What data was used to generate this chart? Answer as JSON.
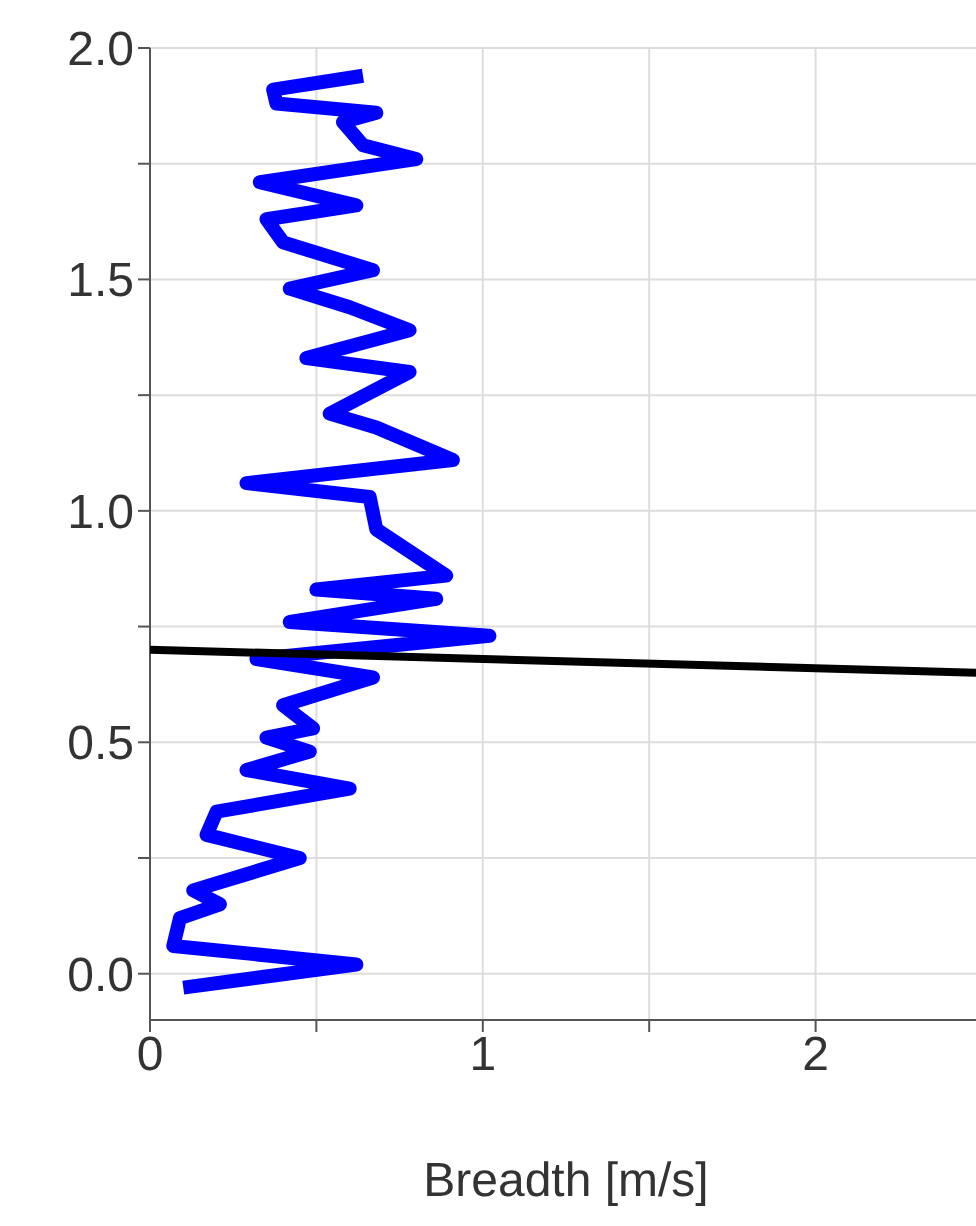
{
  "chart_data": {
    "type": "line",
    "xlabel": "Breadth [m/s]",
    "xlim": [
      0,
      2.5
    ],
    "ylim": [
      -0.1,
      2.0
    ],
    "xticks": [
      0,
      {
        "value": 0.5,
        "label": null
      },
      1,
      {
        "value": 1.5,
        "label": null
      },
      2
    ],
    "yticks": [
      {
        "value": 0,
        "label": "0.0"
      },
      {
        "value": 0.25,
        "label": null
      },
      {
        "value": 0.5,
        "label": "0.5"
      },
      {
        "value": 0.75,
        "label": null
      },
      {
        "value": 1,
        "label": "1.0"
      },
      {
        "value": 1.25,
        "label": null
      },
      {
        "value": 1.5,
        "label": "1.5"
      },
      {
        "value": 1.75,
        "label": null
      },
      {
        "value": 2,
        "label": "2.0"
      }
    ],
    "grid": true,
    "marker": "none",
    "line_style": "solid",
    "series": [
      {
        "color": "#0000ff",
        "x": [
          0.64,
          0.37,
          0.38,
          0.68,
          0.58,
          0.64,
          0.8,
          0.33,
          0.62,
          0.35,
          0.4,
          0.67,
          0.42,
          0.6,
          0.78,
          0.47,
          0.78,
          0.54,
          0.68,
          0.91,
          0.29,
          0.66,
          0.68,
          0.89,
          0.5,
          0.86,
          0.42,
          1.02,
          0.32,
          0.67,
          0.4,
          0.49,
          0.35,
          0.48,
          0.29,
          0.6,
          0.2,
          0.17,
          0.45,
          0.13,
          0.21,
          0.09,
          0.07,
          0.62,
          0.1
        ],
        "values": [
          1.94,
          1.91,
          1.88,
          1.86,
          1.84,
          1.79,
          1.76,
          1.71,
          1.66,
          1.63,
          1.58,
          1.52,
          1.48,
          1.44,
          1.39,
          1.33,
          1.3,
          1.21,
          1.18,
          1.11,
          1.06,
          1.03,
          0.96,
          0.86,
          0.83,
          0.81,
          0.76,
          0.73,
          0.68,
          0.64,
          0.58,
          0.53,
          0.51,
          0.48,
          0.44,
          0.4,
          0.35,
          0.3,
          0.25,
          0.18,
          0.15,
          0.12,
          0.06,
          0.02,
          -0.03
        ]
      },
      {
        "color": "#000000",
        "x": [
          0,
          2.5
        ],
        "values": [
          0.7,
          0.65
        ]
      }
    ]
  }
}
